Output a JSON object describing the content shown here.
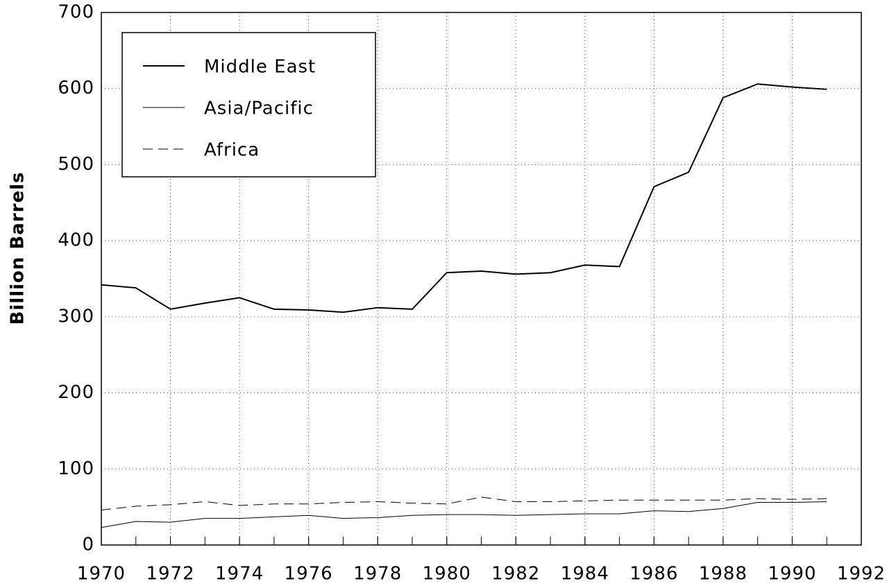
{
  "chart_data": {
    "type": "line",
    "y_label": "Billion Barrels",
    "x": [
      1970,
      1971,
      1972,
      1973,
      1974,
      1975,
      1976,
      1977,
      1978,
      1979,
      1980,
      1981,
      1982,
      1983,
      1984,
      1985,
      1986,
      1987,
      1988,
      1989,
      1990,
      1991
    ],
    "series": [
      {
        "name": "Middle East",
        "color": "#000000",
        "line_style": "solid",
        "line_width": 2,
        "values": [
          342,
          338,
          310,
          318,
          325,
          310,
          309,
          306,
          312,
          310,
          358,
          360,
          356,
          358,
          368,
          366,
          471,
          490,
          588,
          606,
          602,
          599
        ]
      },
      {
        "name": "Asia/Pacific",
        "color": "#000000",
        "line_style": "solid",
        "line_width": 1,
        "values": [
          23,
          31,
          30,
          35,
          35,
          37,
          39,
          35,
          36,
          39,
          40,
          40,
          39,
          40,
          41,
          41,
          45,
          44,
          48,
          56,
          56,
          57
        ]
      },
      {
        "name": "Africa",
        "color": "#000000",
        "line_style": "dashed",
        "line_width": 1,
        "values": [
          46,
          51,
          53,
          57,
          52,
          54,
          54,
          56,
          57,
          55,
          54,
          63,
          57,
          57,
          58,
          59,
          59,
          59,
          59,
          61,
          60,
          61
        ]
      }
    ],
    "xlim": [
      1970,
      1992
    ],
    "xticks": [
      1970,
      1972,
      1974,
      1976,
      1978,
      1980,
      1982,
      1984,
      1986,
      1988,
      1990,
      1992
    ],
    "ylim": [
      0,
      700
    ],
    "yticks": [
      0,
      100,
      200,
      300,
      400,
      500,
      600,
      700
    ],
    "grid": true,
    "legend": "upper left"
  }
}
